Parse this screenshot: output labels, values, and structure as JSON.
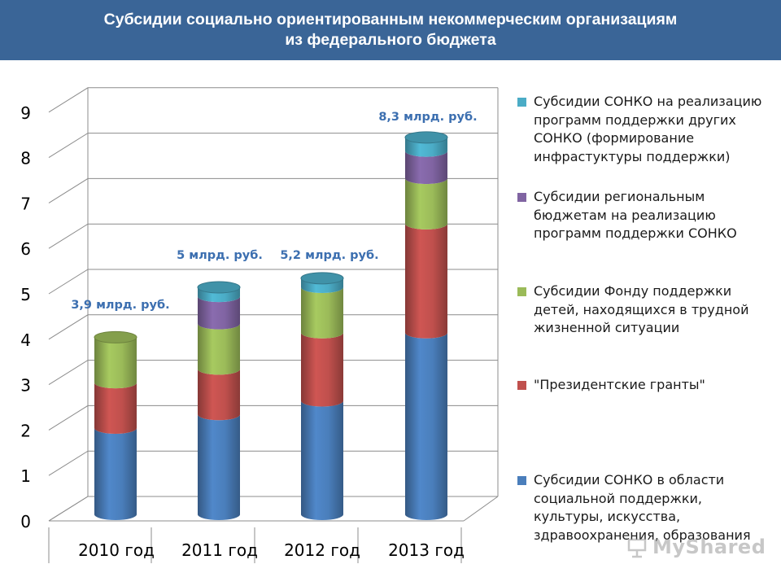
{
  "header": {
    "title_line1": "Субсидии социально ориентированным некоммерческим организациям",
    "title_line2": "из федерального бюджета"
  },
  "chart_data": {
    "type": "bar",
    "stacked": true,
    "categories": [
      "2010 год",
      "2011 год",
      "2012 год",
      "2013 год"
    ],
    "ylim": [
      0,
      9
    ],
    "yticks": [
      "0",
      "1",
      "2",
      "3",
      "4",
      "5",
      "6",
      "7",
      "8",
      "9"
    ],
    "grid": true,
    "legend_position": "right",
    "series": [
      {
        "name": "Субсидии СОНКО в области социальной поддержки, культуры, искусства, здравоохранения, образования",
        "color": "#4a7ebb",
        "values": [
          1.9,
          2.2,
          2.5,
          4.0
        ]
      },
      {
        "name": "\"Президентские гранты\"",
        "color": "#c0504d",
        "values": [
          1.0,
          1.0,
          1.5,
          2.4
        ]
      },
      {
        "name": "Субсидии Фонду поддержки детей, находящихся в трудной жизненной ситуации",
        "color": "#9bbb59",
        "values": [
          1.0,
          1.0,
          1.0,
          1.0
        ]
      },
      {
        "name": "Субсидии региональным бюджетам на реализацию программ поддержки СОНКО",
        "color": "#8064a2",
        "values": [
          0,
          0.6,
          0,
          0.6
        ]
      },
      {
        "name": "Субсидии СОНКО на реализацию программ поддержки других СОНКО (формирование инфрастуктуры поддержки)",
        "color": "#4bacc6",
        "values": [
          0,
          0.2,
          0.2,
          0.3
        ]
      }
    ],
    "totals": [
      3.9,
      5.0,
      5.2,
      8.3
    ],
    "total_labels": [
      "3,9 млрд. руб.",
      "5 млрд. руб.",
      "5,2 млрд. руб.",
      "8,3 млрд. руб."
    ]
  },
  "legend": {
    "items": [
      {
        "label": "Субсидии СОНКО на реализацию программ поддержки других СОНКО (формирование инфрастуктуры поддержки)",
        "color": "#4bacc6"
      },
      {
        "label": "Субсидии региональным бюджетам на реализацию программ поддержки СОНКО",
        "color": "#8064a2"
      },
      {
        "label": "Субсидии Фонду поддержки детей, находящихся в трудной жизненной ситуации",
        "color": "#9bbb59"
      },
      {
        "label": "\"Президентские гранты\"",
        "color": "#c0504d"
      },
      {
        "label": "Субсидии СОНКО в области социальной поддержки, культуры, искусства, здравоохранения, образования",
        "color": "#4a7ebb"
      }
    ]
  },
  "watermark": {
    "text": "MyShared",
    "icon": "presentation-board-icon"
  }
}
